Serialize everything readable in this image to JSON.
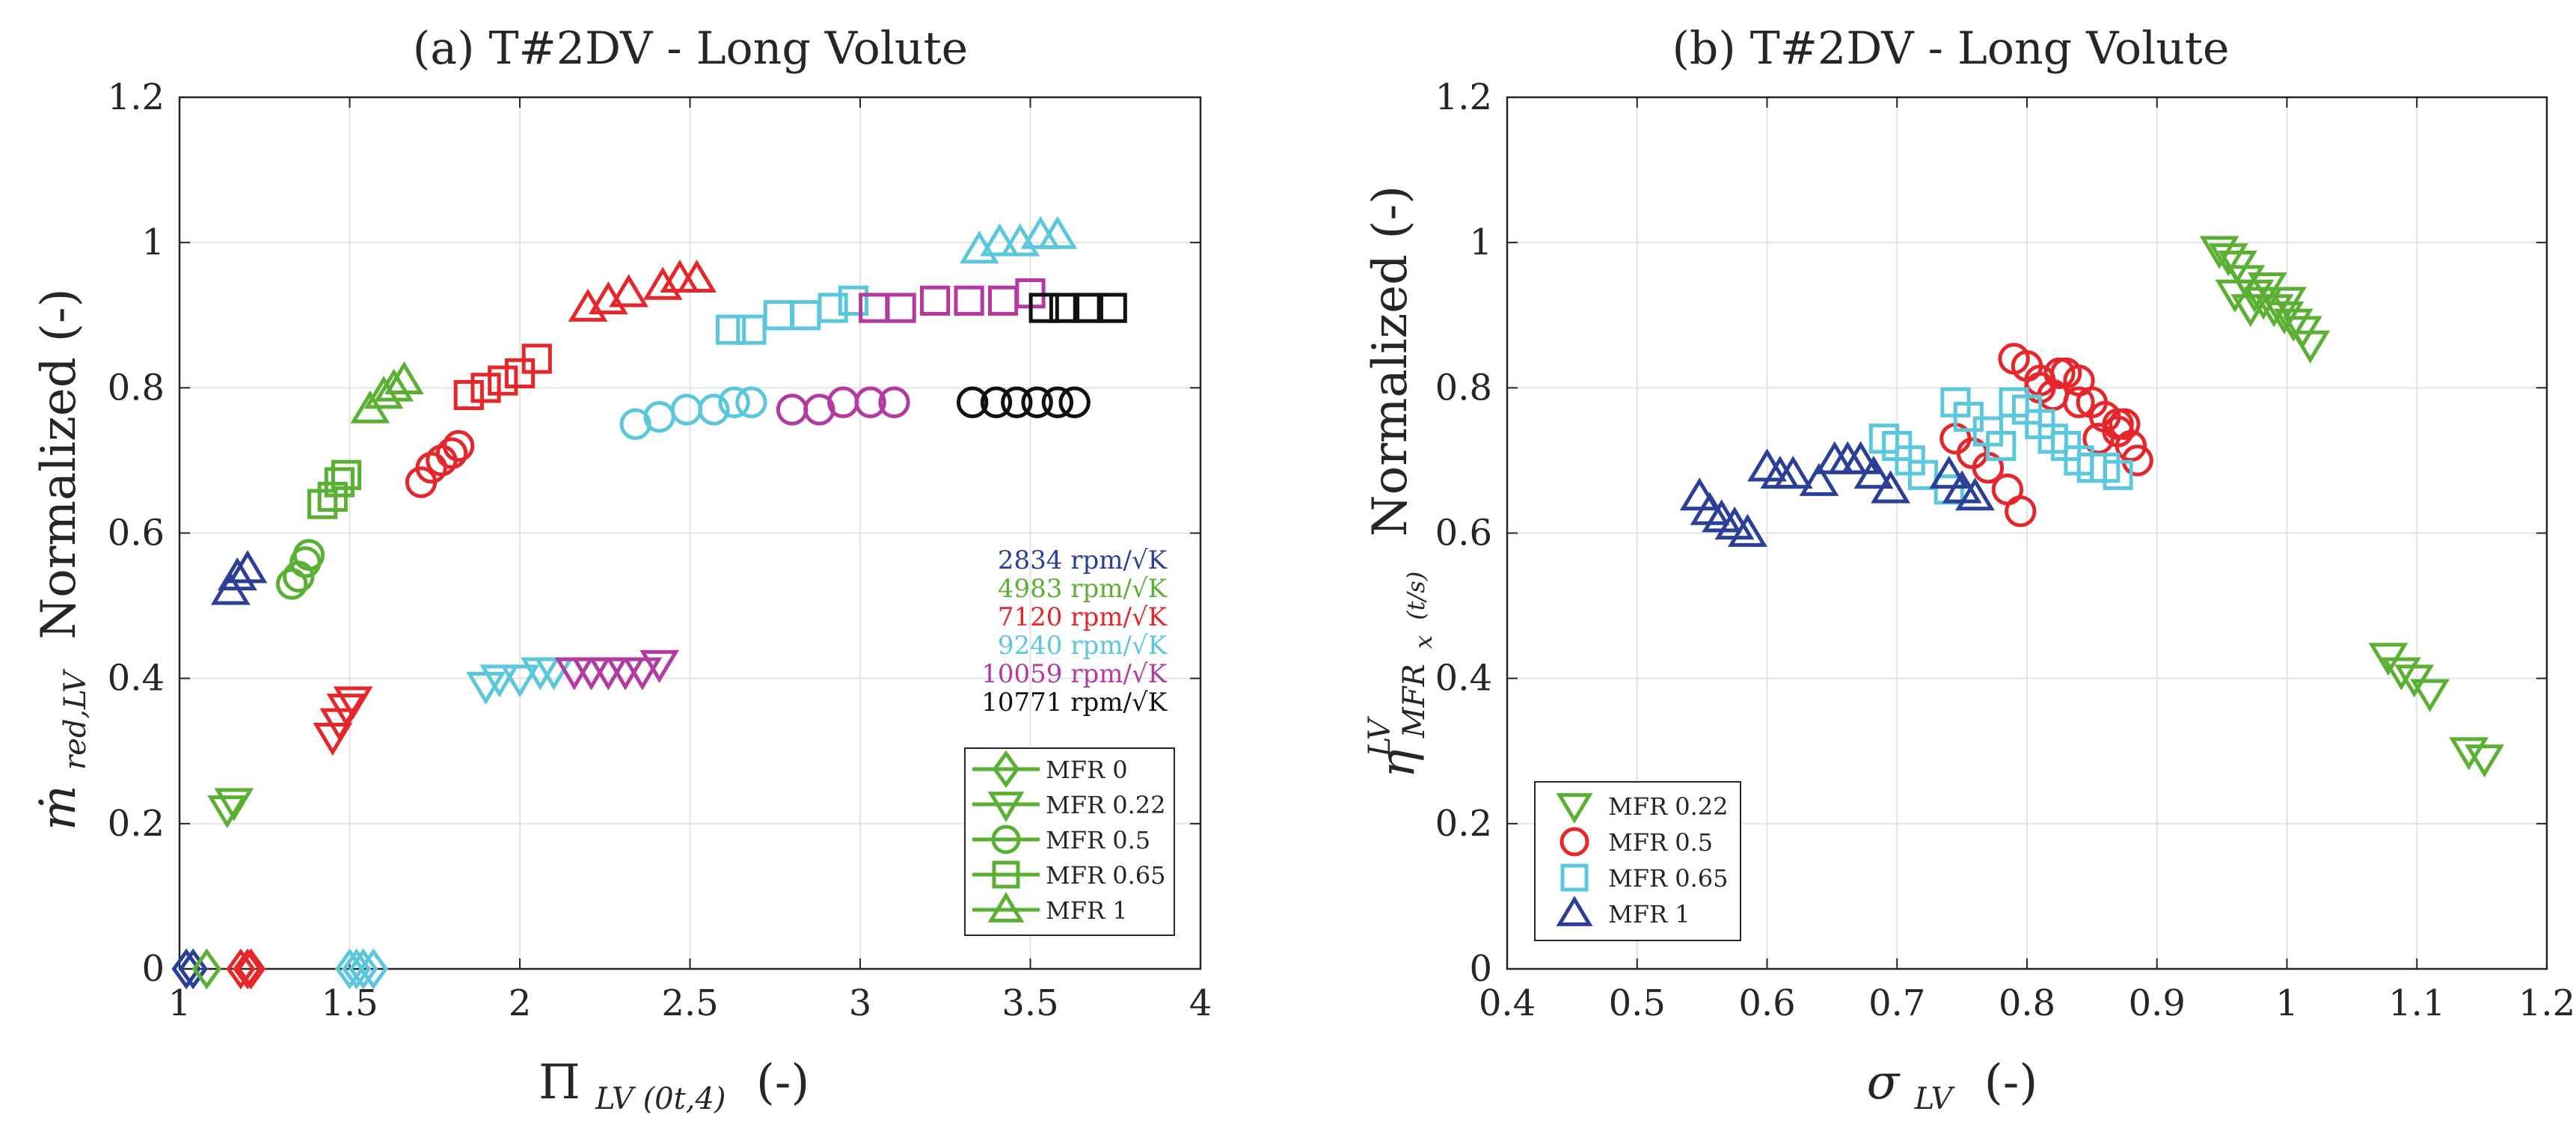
{
  "chart_data": [
    {
      "id": "a",
      "type": "scatter",
      "title": "(a) T#2DV - Long Volute",
      "xlabel": {
        "main": "Π",
        "sub": "LV  (0t,4)",
        "suffix": "(-)"
      },
      "ylabel": {
        "main": "ṁ",
        "sub": "red,LV",
        "suffix": "Normalized (-)"
      },
      "xlim": [
        1,
        4
      ],
      "ylim": [
        0,
        1.2
      ],
      "xticks": [
        "1",
        "1.5",
        "2",
        "2.5",
        "3",
        "3.5",
        "4"
      ],
      "yticks": [
        "0",
        "0.2",
        "0.4",
        "0.6",
        "0.8",
        "1",
        "1.2"
      ],
      "grid": true,
      "speed_legend": [
        {
          "label": "2834 rpm/√K",
          "color": "#2b3f96"
        },
        {
          "label": "4983 rpm/√K",
          "color": "#5ab032"
        },
        {
          "label": "7120 rpm/√K",
          "color": "#e5262b"
        },
        {
          "label": "9240 rpm/√K",
          "color": "#5bc7dc"
        },
        {
          "label": "10059 rpm/√K",
          "color": "#b23aa0"
        },
        {
          "label": "10771 rpm/√K",
          "color": "#111111"
        }
      ],
      "marker_legend": [
        {
          "label": "MFR 0",
          "marker": "diamond"
        },
        {
          "label": "MFR 0.22",
          "marker": "tri-down"
        },
        {
          "label": "MFR 0.5",
          "marker": "circle"
        },
        {
          "label": "MFR 0.65",
          "marker": "square"
        },
        {
          "label": "MFR 1",
          "marker": "tri-up"
        }
      ],
      "legend_marker_color": "#5ab032",
      "series": [
        {
          "name": "2834 MFR 0",
          "marker": "diamond",
          "color": "#2b3f96",
          "x": [
            1.02,
            1.04
          ],
          "y": [
            0,
            0
          ]
        },
        {
          "name": "4983 MFR 0",
          "marker": "diamond",
          "color": "#5ab032",
          "x": [
            1.08
          ],
          "y": [
            0
          ]
        },
        {
          "name": "7120 MFR 0",
          "marker": "diamond",
          "color": "#e5262b",
          "x": [
            1.18,
            1.2,
            1.21
          ],
          "y": [
            0,
            0,
            0
          ]
        },
        {
          "name": "9240 MFR 0",
          "marker": "diamond",
          "color": "#5bc7dc",
          "x": [
            1.5,
            1.52,
            1.54,
            1.57
          ],
          "y": [
            0,
            0,
            0,
            0
          ]
        },
        {
          "name": "4983 MFR 0.22",
          "marker": "tri-down",
          "color": "#5ab032",
          "x": [
            1.14,
            1.16
          ],
          "y": [
            0.22,
            0.23
          ]
        },
        {
          "name": "7120 MFR 0.22",
          "marker": "tri-down",
          "color": "#e5262b",
          "x": [
            1.45,
            1.47,
            1.49,
            1.51
          ],
          "y": [
            0.32,
            0.34,
            0.36,
            0.37
          ]
        },
        {
          "name": "9240 MFR 0.22",
          "marker": "tri-down",
          "color": "#5bc7dc",
          "x": [
            1.9,
            1.94,
            2.0,
            2.06,
            2.1
          ],
          "y": [
            0.39,
            0.4,
            0.4,
            0.41,
            0.41
          ]
        },
        {
          "name": "10059 MFR 0.22",
          "marker": "tri-down",
          "color": "#b23aa0",
          "x": [
            2.16,
            2.21,
            2.26,
            2.31,
            2.36,
            2.41
          ],
          "y": [
            0.41,
            0.41,
            0.41,
            0.41,
            0.41,
            0.42
          ]
        },
        {
          "name": "4983 MFR 0.5",
          "marker": "circle",
          "color": "#5ab032",
          "x": [
            1.33,
            1.35,
            1.37,
            1.38
          ],
          "y": [
            0.53,
            0.54,
            0.56,
            0.57
          ]
        },
        {
          "name": "7120 MFR 0.5",
          "marker": "circle",
          "color": "#e5262b",
          "x": [
            1.71,
            1.74,
            1.77,
            1.8,
            1.82
          ],
          "y": [
            0.67,
            0.69,
            0.7,
            0.71,
            0.72
          ]
        },
        {
          "name": "9240 MFR 0.5",
          "marker": "circle",
          "color": "#5bc7dc",
          "x": [
            2.34,
            2.41,
            2.49,
            2.57,
            2.63,
            2.68
          ],
          "y": [
            0.75,
            0.76,
            0.77,
            0.77,
            0.78,
            0.78
          ]
        },
        {
          "name": "10059 MFR 0.5",
          "marker": "circle",
          "color": "#b23aa0",
          "x": [
            2.8,
            2.88,
            2.95,
            3.03,
            3.1
          ],
          "y": [
            0.77,
            0.77,
            0.78,
            0.78,
            0.78
          ]
        },
        {
          "name": "10771 MFR 0.5",
          "marker": "circle",
          "color": "#111111",
          "x": [
            3.33,
            3.4,
            3.46,
            3.52,
            3.58,
            3.63
          ],
          "y": [
            0.78,
            0.78,
            0.78,
            0.78,
            0.78,
            0.78
          ]
        },
        {
          "name": "4983 MFR 0.65",
          "marker": "square",
          "color": "#5ab032",
          "x": [
            1.42,
            1.45,
            1.47,
            1.49
          ],
          "y": [
            0.64,
            0.65,
            0.67,
            0.68
          ]
        },
        {
          "name": "7120 MFR 0.65",
          "marker": "square",
          "color": "#e5262b",
          "x": [
            1.85,
            1.9,
            1.95,
            2.0,
            2.05
          ],
          "y": [
            0.79,
            0.8,
            0.81,
            0.82,
            0.84
          ]
        },
        {
          "name": "9240 MFR 0.65",
          "marker": "square",
          "color": "#5bc7dc",
          "x": [
            2.62,
            2.68,
            2.76,
            2.84,
            2.92,
            2.98
          ],
          "y": [
            0.88,
            0.88,
            0.9,
            0.9,
            0.91,
            0.92
          ]
        },
        {
          "name": "10059 MFR 0.65",
          "marker": "square",
          "color": "#b23aa0",
          "x": [
            3.04,
            3.12,
            3.22,
            3.32,
            3.42,
            3.5
          ],
          "y": [
            0.91,
            0.91,
            0.92,
            0.92,
            0.92,
            0.93
          ]
        },
        {
          "name": "10771 MFR 0.65",
          "marker": "square",
          "color": "#111111",
          "x": [
            3.54,
            3.6,
            3.67,
            3.74
          ],
          "y": [
            0.91,
            0.91,
            0.91,
            0.91
          ]
        },
        {
          "name": "2834 MFR 1",
          "marker": "tri-up",
          "color": "#2b3f96",
          "x": [
            1.15,
            1.17,
            1.2
          ],
          "y": [
            0.52,
            0.54,
            0.55
          ]
        },
        {
          "name": "4983 MFR 1",
          "marker": "tri-up",
          "color": "#5ab032",
          "x": [
            1.56,
            1.6,
            1.63,
            1.66
          ],
          "y": [
            0.77,
            0.79,
            0.8,
            0.81
          ]
        },
        {
          "name": "7120 MFR 1",
          "marker": "tri-up",
          "color": "#e5262b",
          "x": [
            2.2,
            2.26,
            2.32,
            2.42,
            2.47,
            2.52
          ],
          "y": [
            0.91,
            0.92,
            0.93,
            0.94,
            0.95,
            0.95
          ]
        },
        {
          "name": "9240 MFR 1",
          "marker": "tri-up",
          "color": "#5bc7dc",
          "x": [
            3.35,
            3.41,
            3.47,
            3.53,
            3.58
          ],
          "y": [
            0.99,
            1.0,
            1.0,
            1.01,
            1.01
          ]
        }
      ]
    },
    {
      "id": "b",
      "type": "scatter",
      "title": "(b) T#2DV - Long Volute",
      "xlabel": {
        "main": "σ",
        "sub": "LV",
        "suffix": "(-)"
      },
      "ylabel": {
        "main": "η",
        "sup": "LV",
        "sub": "MFR",
        "subsub": "x",
        "subtail": "(t/s)",
        "suffix": "Normalized (-)"
      },
      "xlim": [
        0.4,
        1.2
      ],
      "ylim": [
        0,
        1.2
      ],
      "xticks": [
        "0.4",
        "0.5",
        "0.6",
        "0.7",
        "0.8",
        "0.9",
        "1",
        "1.1",
        "1.2"
      ],
      "yticks": [
        "0",
        "0.2",
        "0.4",
        "0.6",
        "0.8",
        "1",
        "1.2"
      ],
      "grid": true,
      "marker_legend": [
        {
          "label": "MFR 0.22",
          "marker": "tri-down",
          "color": "#5ab032"
        },
        {
          "label": "MFR 0.5",
          "marker": "circle",
          "color": "#e5262b"
        },
        {
          "label": "MFR 0.65",
          "marker": "square",
          "color": "#5bc7dc"
        },
        {
          "label": "MFR 1",
          "marker": "tri-up",
          "color": "#2b3f96"
        }
      ],
      "series": [
        {
          "name": "MFR 0.22",
          "marker": "tri-down",
          "color": "#5ab032",
          "x": [
            0.948,
            0.955,
            0.962,
            0.968,
            0.975,
            0.982,
            0.99,
            0.998,
            1.005,
            1.012,
            1.018,
            0.96,
            0.972,
            0.985,
            1.0,
            1.078,
            1.088,
            1.098,
            1.11,
            1.14,
            1.152
          ],
          "y": [
            0.99,
            0.98,
            0.97,
            0.95,
            0.93,
            0.92,
            0.91,
            0.9,
            0.89,
            0.88,
            0.86,
            0.93,
            0.91,
            0.94,
            0.92,
            0.43,
            0.41,
            0.4,
            0.38,
            0.3,
            0.29
          ]
        },
        {
          "name": "MFR 0.5",
          "marker": "circle",
          "color": "#e5262b",
          "x": [
            0.745,
            0.758,
            0.77,
            0.785,
            0.795,
            0.79,
            0.8,
            0.81,
            0.82,
            0.83,
            0.84,
            0.85,
            0.86,
            0.87,
            0.875,
            0.88,
            0.885,
            0.81,
            0.825,
            0.84,
            0.855,
            0.87
          ],
          "y": [
            0.73,
            0.71,
            0.69,
            0.66,
            0.63,
            0.84,
            0.83,
            0.81,
            0.79,
            0.82,
            0.81,
            0.78,
            0.76,
            0.74,
            0.75,
            0.72,
            0.7,
            0.8,
            0.82,
            0.78,
            0.73,
            0.75
          ]
        },
        {
          "name": "MFR 0.65",
          "marker": "square",
          "color": "#5bc7dc",
          "x": [
            0.69,
            0.7,
            0.71,
            0.72,
            0.74,
            0.745,
            0.755,
            0.77,
            0.78,
            0.79,
            0.8,
            0.81,
            0.82,
            0.83,
            0.84,
            0.85,
            0.86,
            0.87
          ],
          "y": [
            0.73,
            0.72,
            0.7,
            0.68,
            0.66,
            0.78,
            0.76,
            0.74,
            0.72,
            0.78,
            0.77,
            0.75,
            0.73,
            0.72,
            0.7,
            0.69,
            0.69,
            0.68
          ]
        },
        {
          "name": "MFR 1",
          "marker": "tri-up",
          "color": "#2b3f96",
          "x": [
            0.548,
            0.556,
            0.565,
            0.575,
            0.585,
            0.6,
            0.61,
            0.62,
            0.64,
            0.652,
            0.662,
            0.672,
            0.682,
            0.695,
            0.74,
            0.75,
            0.76
          ],
          "y": [
            0.65,
            0.63,
            0.62,
            0.61,
            0.6,
            0.69,
            0.68,
            0.68,
            0.67,
            0.7,
            0.7,
            0.7,
            0.68,
            0.66,
            0.68,
            0.66,
            0.65
          ]
        }
      ]
    }
  ]
}
